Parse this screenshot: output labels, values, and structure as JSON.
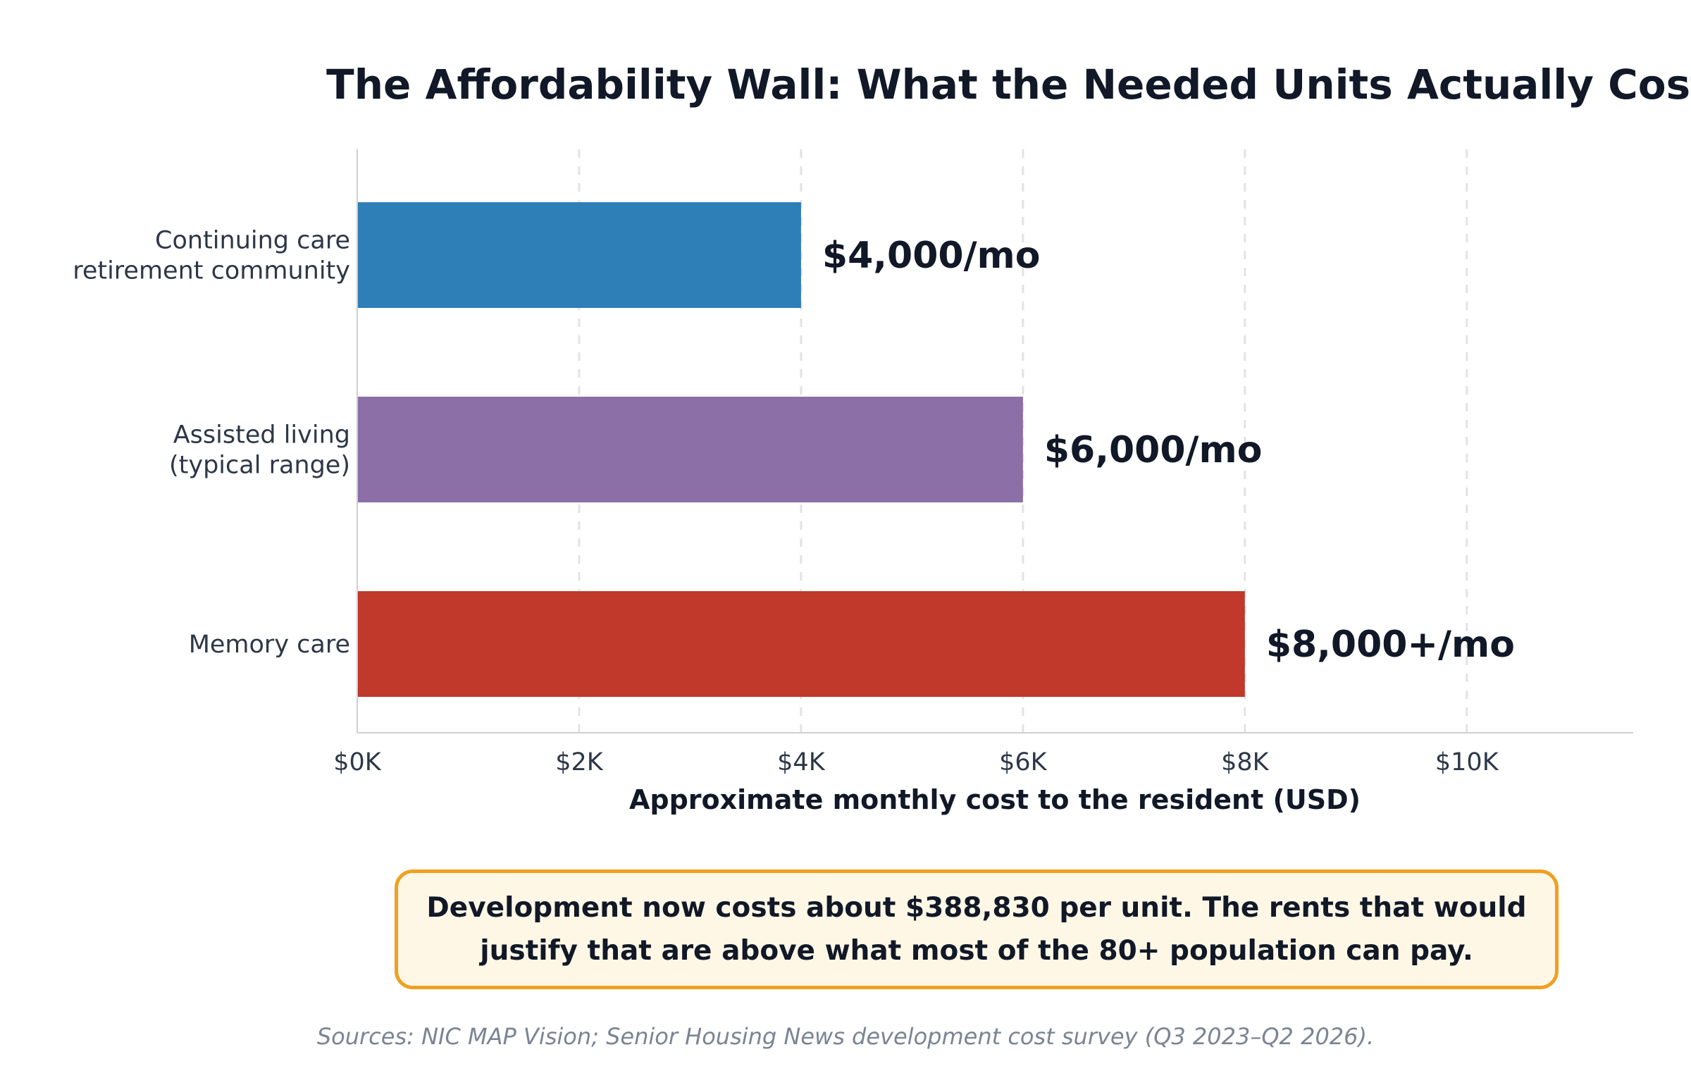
{
  "chart_data": {
    "type": "bar",
    "orientation": "horizontal",
    "title": "The Affordability Wall: What the Needed Units Actually Cost",
    "xlabel": "Approximate monthly cost to the resident (USD)",
    "ylabel": "",
    "xlim": [
      0,
      11500
    ],
    "grid": true,
    "x_ticks": [
      {
        "value": 0,
        "label": "$0K"
      },
      {
        "value": 2000,
        "label": "$2K"
      },
      {
        "value": 4000,
        "label": "$4K"
      },
      {
        "value": 6000,
        "label": "$6K"
      },
      {
        "value": 8000,
        "label": "$8K"
      },
      {
        "value": 10000,
        "label": "$10K"
      }
    ],
    "bars": [
      {
        "category_lines": [
          "Continuing care",
          "retirement community"
        ],
        "value": 4000,
        "label": "$4,000/mo",
        "color": "#2e7eb8"
      },
      {
        "category_lines": [
          "Assisted living",
          "(typical range)"
        ],
        "value": 6000,
        "label": "$6,000/mo",
        "color": "#8c6fa6"
      },
      {
        "category_lines": [
          "Memory care"
        ],
        "value": 8000,
        "label": "$8,000+/mo",
        "color": "#c0392b"
      }
    ]
  },
  "callout": {
    "lines": [
      "Development now costs about $388,830 per unit. The rents that would",
      "justify that are above what most of the 80+ population can pay."
    ],
    "border_color": "#f0a020",
    "background_color": "#fef7e6"
  },
  "source": "Sources: NIC MAP Vision; Senior Housing News development cost survey (Q3 2023–Q2 2026)."
}
